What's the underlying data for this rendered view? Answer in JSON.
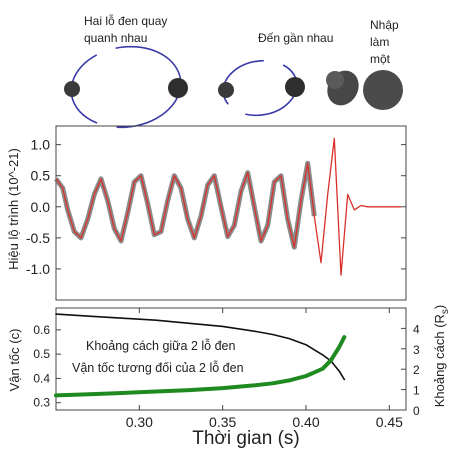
{
  "stages": {
    "stage1": [
      "Hai lỗ đen quay",
      "quanh nhau"
    ],
    "stage2": "Đến gần nhau",
    "stage3": [
      "Nhập",
      "làm",
      "một"
    ]
  },
  "chart_data": [
    {
      "type": "line",
      "ylabel": "Hiệu lộ trình (10^-21)",
      "xlim": [
        0.25,
        0.46
      ],
      "ylim": [
        -1.5,
        1.3
      ],
      "yticks": [
        "1.0",
        "0.5",
        "0.0",
        "-0.5",
        "-1.0"
      ],
      "ytick_values": [
        1.0,
        0.5,
        0.0,
        -0.5,
        -1.0
      ],
      "series": [
        {
          "color": "#d9302b",
          "band_color": "#777777",
          "x": [
            0.25,
            0.254,
            0.257,
            0.261,
            0.265,
            0.269,
            0.273,
            0.277,
            0.281,
            0.285,
            0.289,
            0.293,
            0.297,
            0.301,
            0.305,
            0.309,
            0.313,
            0.317,
            0.321,
            0.325,
            0.329,
            0.333,
            0.337,
            0.341,
            0.345,
            0.349,
            0.353,
            0.357,
            0.361,
            0.365,
            0.369,
            0.373,
            0.377,
            0.381,
            0.385,
            0.389,
            0.393,
            0.397,
            0.401,
            0.405,
            0.409,
            0.413,
            0.417,
            0.421,
            0.425,
            0.429,
            0.433,
            0.437,
            0.441,
            0.445,
            0.449,
            0.453,
            0.457
          ],
          "y": [
            0.45,
            0.3,
            -0.05,
            -0.4,
            -0.5,
            -0.2,
            0.2,
            0.45,
            0.1,
            -0.35,
            -0.55,
            -0.1,
            0.4,
            0.5,
            0.05,
            -0.45,
            -0.4,
            0.1,
            0.5,
            0.3,
            -0.2,
            -0.5,
            -0.15,
            0.35,
            0.5,
            0.0,
            -0.48,
            -0.3,
            0.25,
            0.55,
            0.0,
            -0.55,
            -0.3,
            0.4,
            0.5,
            -0.2,
            -0.65,
            0.1,
            0.7,
            -0.15,
            -0.9,
            0.2,
            1.1,
            -1.1,
            0.2,
            -0.05,
            0.02,
            0.0,
            0.0,
            0.0,
            0.0,
            0.0,
            0.0
          ]
        }
      ]
    },
    {
      "type": "line",
      "xlabel": "Thời gian (s)",
      "ylabel": "Vận tốc (c)",
      "ylabel_right": "Khoảng cách (R",
      "ylabel_right_sub": "s",
      "ylabel_right_end": ")",
      "xlim": [
        0.25,
        0.46
      ],
      "ylim": [
        0.27,
        0.69
      ],
      "ylim_right": [
        0,
        5
      ],
      "xticks": [
        "0.30",
        "0.35",
        "0.40",
        "0.45"
      ],
      "xtick_values": [
        0.3,
        0.35,
        0.4,
        0.45
      ],
      "yticks": [
        "0.6",
        "0.5",
        "0.4",
        "0.3"
      ],
      "ytick_values": [
        0.6,
        0.5,
        0.4,
        0.3
      ],
      "yticks_right": [
        "4",
        "3",
        "2",
        "1",
        "0"
      ],
      "ytick_right_values": [
        4,
        3,
        2,
        1,
        0
      ],
      "series": [
        {
          "name": "Khoảng cách giữa 2 lỗ đen",
          "axis": "right",
          "color": "#111111",
          "x": [
            0.25,
            0.27,
            0.29,
            0.31,
            0.33,
            0.35,
            0.37,
            0.38,
            0.39,
            0.4,
            0.405,
            0.41,
            0.415,
            0.42,
            0.423
          ],
          "y": [
            4.7,
            4.6,
            4.5,
            4.4,
            4.25,
            4.1,
            3.85,
            3.7,
            3.5,
            3.2,
            2.95,
            2.7,
            2.4,
            1.9,
            1.5
          ]
        },
        {
          "name": "Vận tốc tương đối của 2 lỗ đen",
          "axis": "left",
          "color": "#1f8a1f",
          "x": [
            0.25,
            0.27,
            0.29,
            0.31,
            0.33,
            0.35,
            0.37,
            0.38,
            0.39,
            0.4,
            0.405,
            0.41,
            0.415,
            0.42,
            0.423
          ],
          "y": [
            0.33,
            0.335,
            0.34,
            0.346,
            0.352,
            0.36,
            0.372,
            0.38,
            0.392,
            0.41,
            0.425,
            0.44,
            0.475,
            0.53,
            0.57
          ]
        }
      ]
    }
  ]
}
